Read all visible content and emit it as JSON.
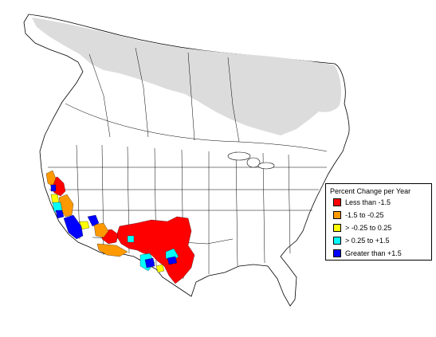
{
  "legend": {
    "title": "Percent Change per Year",
    "items": [
      {
        "label": "Less than -1.5",
        "color": "#ff0000"
      },
      {
        "label": "-1.5 to -0.25",
        "color": "#ff9900"
      },
      {
        "label": "> -0.25 to 0.25",
        "color": "#ffff00"
      },
      {
        "label": "> 0.25 to +1.5",
        "color": "#00ffff"
      },
      {
        "label": "Greater than +1.5",
        "color": "#0000ff"
      }
    ]
  },
  "colors": {
    "land": "#ffffff",
    "no_data_region": "#dcdcdc",
    "borders": "#000000",
    "decline_strong": "#ff0000",
    "decline_moderate": "#ff9900",
    "stable": "#ffff00",
    "increase_moderate": "#00ffff",
    "increase_strong": "#0000ff"
  }
}
